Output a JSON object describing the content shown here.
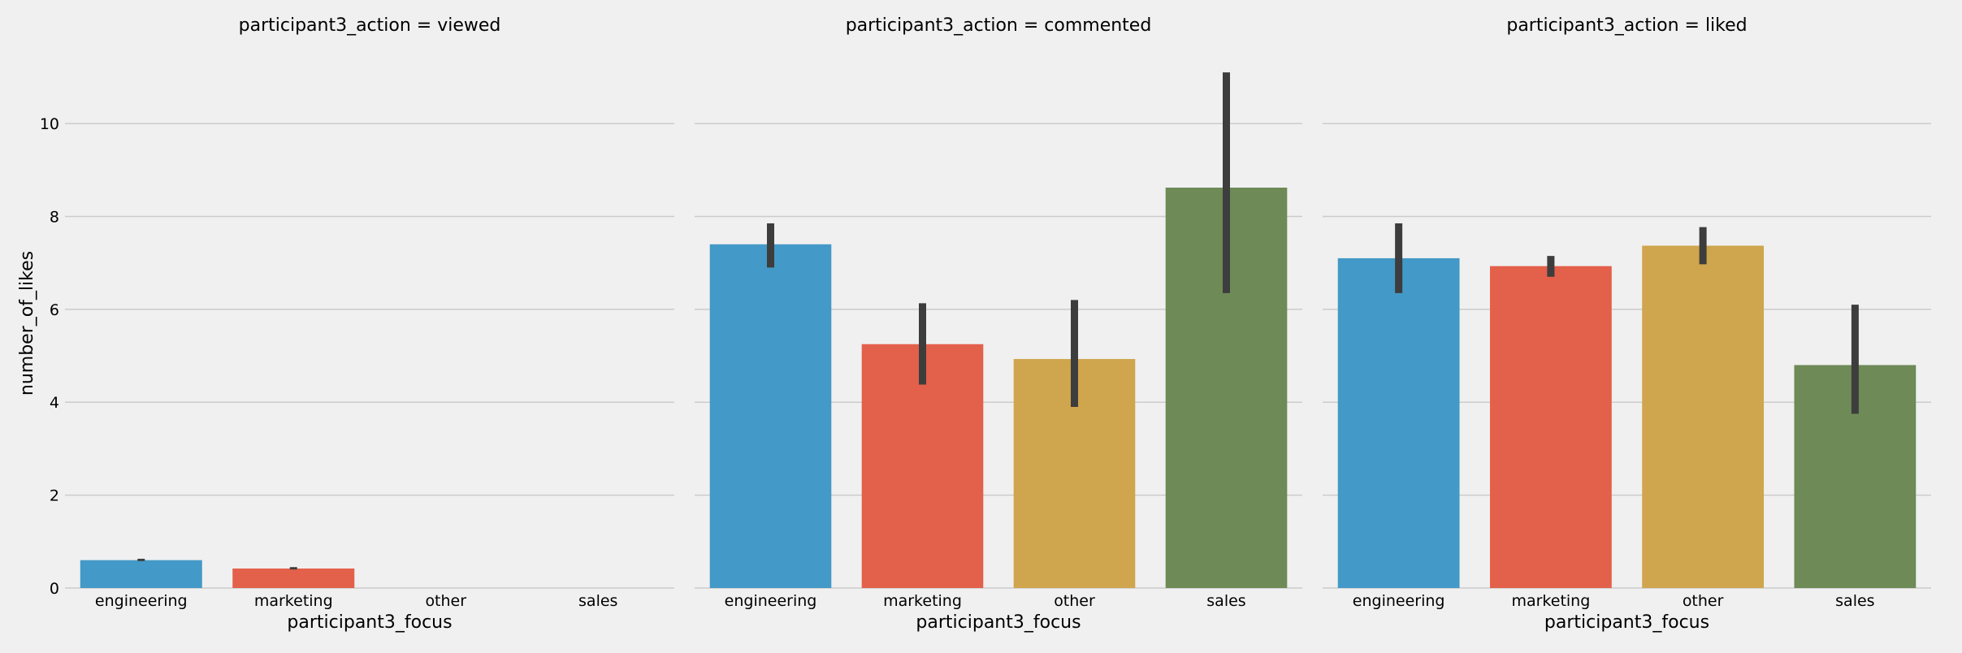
{
  "chart_data": {
    "type": "bar",
    "ylabel": "number_of_likes",
    "xlabel": "participant3_focus",
    "categories": [
      "engineering",
      "marketing",
      "other",
      "sales"
    ],
    "ylim": [
      0,
      11.4
    ],
    "yticks": [
      0,
      2,
      4,
      6,
      8,
      10
    ],
    "grid": true,
    "colors": [
      "#4399c7",
      "#e3604a",
      "#cfa54d",
      "#6e8a57"
    ],
    "errorbar_color": "#3d3d3d",
    "panels": [
      {
        "title": "participant3_action = viewed",
        "values": [
          0.6,
          0.42,
          null,
          null
        ],
        "err_low": [
          0.58,
          0.4,
          null,
          null
        ],
        "err_high": [
          0.63,
          0.45,
          null,
          null
        ]
      },
      {
        "title": "participant3_action = commented",
        "values": [
          7.4,
          5.25,
          4.93,
          8.62
        ],
        "err_low": [
          6.9,
          4.38,
          3.9,
          6.35
        ],
        "err_high": [
          7.85,
          6.13,
          6.2,
          11.1
        ]
      },
      {
        "title": "participant3_action = liked",
        "values": [
          7.1,
          6.93,
          7.37,
          4.8
        ],
        "err_low": [
          6.35,
          6.7,
          6.97,
          3.75
        ],
        "err_high": [
          7.85,
          7.15,
          7.77,
          6.1
        ]
      }
    ]
  }
}
